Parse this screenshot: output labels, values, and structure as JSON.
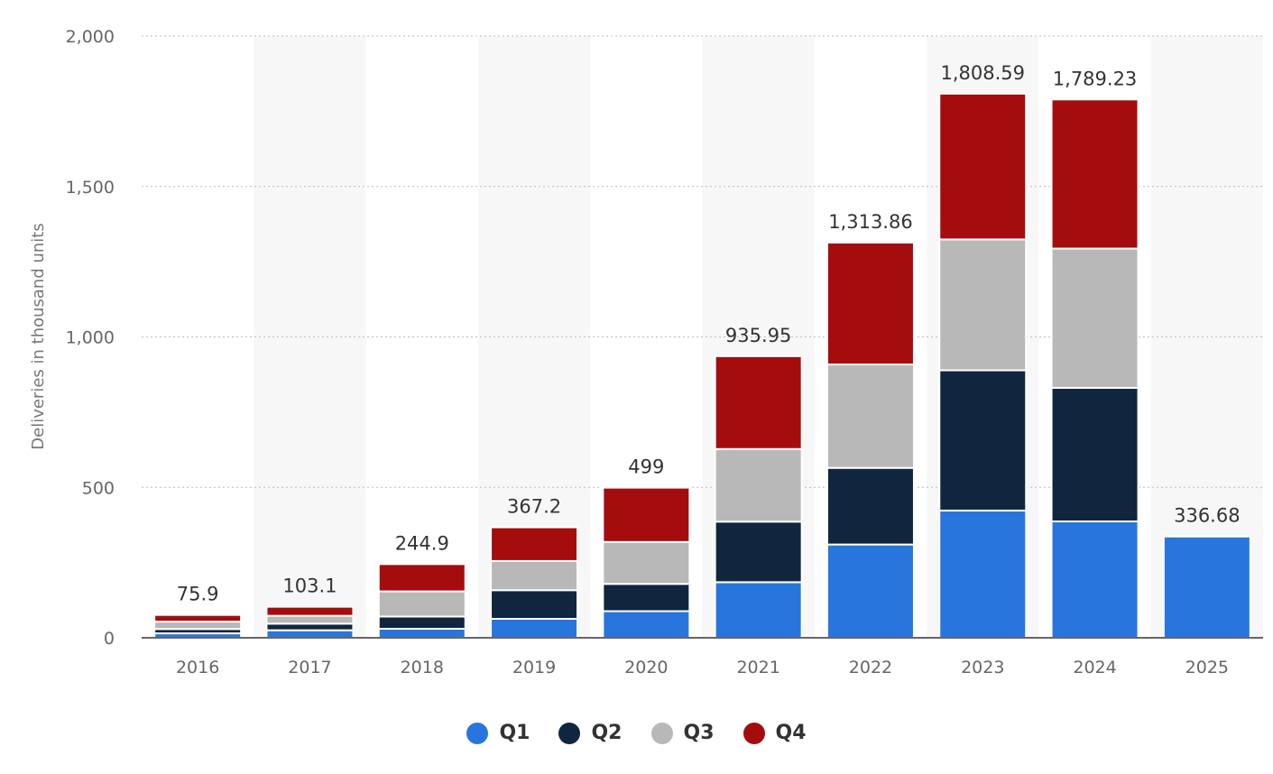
{
  "chart_data": {
    "type": "bar",
    "stacked": true,
    "title": "",
    "xlabel": "",
    "ylabel": "Deliveries in thousand units",
    "ylim": [
      0,
      2000
    ],
    "yticks": [
      0,
      500,
      1000,
      1500,
      2000
    ],
    "ytick_labels": [
      "0",
      "500",
      "1,000",
      "1,500",
      "2,000"
    ],
    "grid": true,
    "legend_position": "bottom",
    "categories": [
      "2016",
      "2017",
      "2018",
      "2019",
      "2020",
      "2021",
      "2022",
      "2023",
      "2024",
      "2025"
    ],
    "series": [
      {
        "name": "Q1",
        "color": "#2876dd",
        "values": [
          14.8,
          25.0,
          30.0,
          63.0,
          88.4,
          184.8,
          310.0,
          422.9,
          386.8,
          336.68
        ]
      },
      {
        "name": "Q2",
        "color": "#10263f",
        "values": [
          14.4,
          22.0,
          40.7,
          95.2,
          90.7,
          201.3,
          254.7,
          466.1,
          444.0,
          null
        ]
      },
      {
        "name": "Q3",
        "color": "#b8b8b8",
        "values": [
          24.5,
          26.1,
          83.5,
          97.0,
          139.3,
          241.3,
          343.8,
          435.1,
          462.9,
          null
        ]
      },
      {
        "name": "Q4",
        "color": "#a50c0e",
        "values": [
          22.2,
          30.0,
          90.7,
          112.0,
          180.6,
          308.6,
          405.3,
          484.5,
          495.6,
          null
        ]
      }
    ],
    "totals": [
      75.9,
      103.1,
      244.9,
      367.2,
      499,
      935.95,
      1313.86,
      1808.59,
      1789.23,
      336.68
    ],
    "total_labels": [
      "75.9",
      "103.1",
      "244.9",
      "367.2",
      "499",
      "935.95",
      "1,313.86",
      "1,808.59",
      "1,789.23",
      "336.68"
    ]
  }
}
